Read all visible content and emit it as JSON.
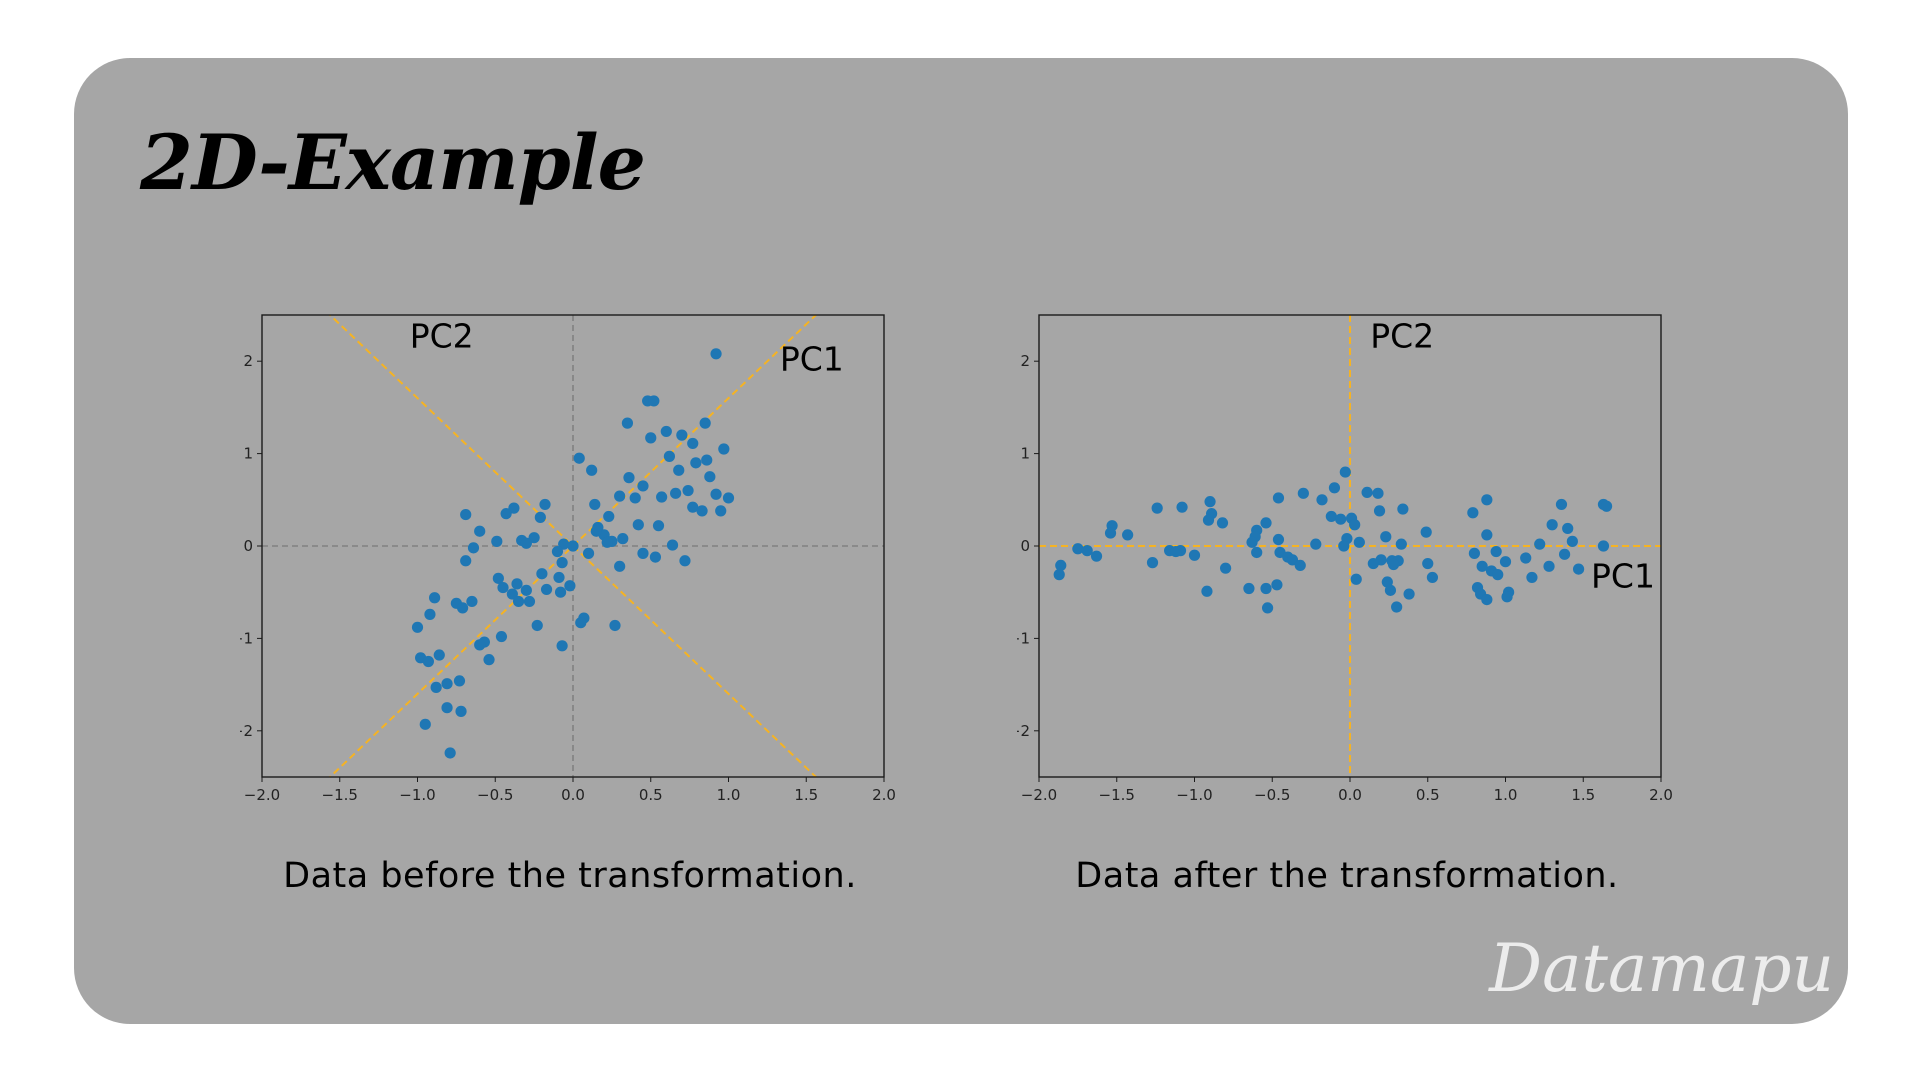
{
  "title": "2D-Example",
  "brand": "Datamapu",
  "colors": {
    "card": "#a6a6a6",
    "points": "#1f77b4",
    "pc_line": "#f5b323",
    "axis_line": "#808080"
  },
  "captions": {
    "before": "Data before the transformation.",
    "after": "Data after the transformation."
  },
  "chart_data": [
    {
      "type": "scatter",
      "xlim": [
        -2.0,
        2.0
      ],
      "ylim": [
        -2.5,
        2.5
      ],
      "xticks": [
        "−2.0",
        "−1.5",
        "−1.0",
        "−0.5",
        "0.0",
        "0.5",
        "1.0",
        "1.5",
        "2.0"
      ],
      "yticks": [
        "−2",
        "−1",
        "0",
        "1",
        "2"
      ],
      "grid": false,
      "annotations": [
        {
          "text": "PC2",
          "x": -1.05,
          "y": 2.15
        },
        {
          "text": "PC1",
          "x": 1.33,
          "y": 1.9
        }
      ],
      "reference_lines": [
        {
          "name": "PC1",
          "style": "dashed",
          "slope": 1.6,
          "intercept": 0
        },
        {
          "name": "PC2",
          "style": "dashed",
          "slope": -1.6,
          "intercept": 0
        },
        {
          "name": "x=0",
          "style": "dashed",
          "x": 0
        },
        {
          "name": "y=0",
          "style": "dashed",
          "y": 0
        }
      ],
      "points": [
        [
          0.92,
          2.08
        ],
        [
          0.48,
          1.57
        ],
        [
          0.52,
          1.57
        ],
        [
          0.35,
          1.33
        ],
        [
          0.85,
          1.33
        ],
        [
          0.5,
          1.17
        ],
        [
          0.6,
          1.24
        ],
        [
          0.77,
          1.11
        ],
        [
          0.7,
          1.2
        ],
        [
          0.97,
          1.05
        ],
        [
          0.04,
          0.95
        ],
        [
          0.12,
          0.82
        ],
        [
          0.62,
          0.97
        ],
        [
          0.86,
          0.93
        ],
        [
          0.79,
          0.9
        ],
        [
          0.36,
          0.74
        ],
        [
          0.68,
          0.82
        ],
        [
          0.88,
          0.75
        ],
        [
          0.45,
          0.65
        ],
        [
          0.74,
          0.6
        ],
        [
          0.66,
          0.57
        ],
        [
          0.92,
          0.56
        ],
        [
          1.0,
          0.52
        ],
        [
          0.57,
          0.53
        ],
        [
          0.4,
          0.52
        ],
        [
          0.3,
          0.54
        ],
        [
          0.77,
          0.42
        ],
        [
          0.83,
          0.38
        ],
        [
          0.95,
          0.38
        ],
        [
          0.14,
          0.45
        ],
        [
          -0.18,
          0.45
        ],
        [
          -0.38,
          0.41
        ],
        [
          -0.43,
          0.35
        ],
        [
          -0.69,
          0.34
        ],
        [
          -0.21,
          0.31
        ],
        [
          0.23,
          0.32
        ],
        [
          0.16,
          0.2
        ],
        [
          0.42,
          0.23
        ],
        [
          -0.6,
          0.16
        ],
        [
          0.2,
          0.12
        ],
        [
          0.15,
          0.16
        ],
        [
          -0.25,
          0.09
        ],
        [
          -0.33,
          0.06
        ],
        [
          -0.49,
          0.05
        ],
        [
          -0.3,
          0.03
        ],
        [
          0.25,
          0.05
        ],
        [
          0.32,
          0.08
        ],
        [
          0.22,
          0.04
        ],
        [
          -0.06,
          0.02
        ],
        [
          0.0,
          0.0
        ],
        [
          -0.64,
          -0.02
        ],
        [
          0.64,
          0.01
        ],
        [
          0.55,
          0.22
        ],
        [
          -0.1,
          -0.06
        ],
        [
          0.1,
          -0.08
        ],
        [
          -0.69,
          -0.16
        ],
        [
          -0.07,
          -0.18
        ],
        [
          0.45,
          -0.08
        ],
        [
          0.53,
          -0.12
        ],
        [
          0.72,
          -0.16
        ],
        [
          0.3,
          -0.22
        ],
        [
          -0.2,
          -0.3
        ],
        [
          -0.09,
          -0.34
        ],
        [
          -0.48,
          -0.35
        ],
        [
          -0.36,
          -0.41
        ],
        [
          -0.45,
          -0.45
        ],
        [
          -0.02,
          -0.43
        ],
        [
          -0.3,
          -0.48
        ],
        [
          -0.39,
          -0.52
        ],
        [
          -0.17,
          -0.47
        ],
        [
          -0.08,
          -0.5
        ],
        [
          -0.28,
          -0.6
        ],
        [
          -0.75,
          -0.62
        ],
        [
          -0.65,
          -0.6
        ],
        [
          -0.71,
          -0.67
        ],
        [
          -0.89,
          -0.56
        ],
        [
          -0.35,
          -0.6
        ],
        [
          0.07,
          -0.78
        ],
        [
          0.05,
          -0.83
        ],
        [
          0.27,
          -0.86
        ],
        [
          -0.23,
          -0.86
        ],
        [
          -0.92,
          -0.74
        ],
        [
          -1.0,
          -0.88
        ],
        [
          -0.46,
          -0.98
        ],
        [
          -0.57,
          -1.04
        ],
        [
          -0.6,
          -1.07
        ],
        [
          -0.07,
          -1.08
        ],
        [
          -0.98,
          -1.21
        ],
        [
          -0.93,
          -1.25
        ],
        [
          -0.54,
          -1.23
        ],
        [
          -0.86,
          -1.18
        ],
        [
          -0.73,
          -1.46
        ],
        [
          -0.81,
          -1.49
        ],
        [
          -0.88,
          -1.53
        ],
        [
          -0.81,
          -1.75
        ],
        [
          -0.72,
          -1.79
        ],
        [
          -0.95,
          -1.93
        ],
        [
          -0.79,
          -2.24
        ]
      ]
    },
    {
      "type": "scatter",
      "xlim": [
        -2.0,
        2.0
      ],
      "ylim": [
        -2.5,
        2.5
      ],
      "xticks": [
        "−2.0",
        "−1.5",
        "−1.0",
        "−0.5",
        "0.0",
        "0.5",
        "1.0",
        "1.5",
        "2.0"
      ],
      "yticks": [
        "−2",
        "−1",
        "0",
        "1",
        "2"
      ],
      "grid": false,
      "annotations": [
        {
          "text": "PC2",
          "x": 0.13,
          "y": 2.15
        },
        {
          "text": "PC1",
          "x": 1.55,
          "y": -0.45
        }
      ],
      "reference_lines": [
        {
          "name": "PC1",
          "style": "dashed",
          "y": 0
        },
        {
          "name": "PC2",
          "style": "dashed",
          "x": 0
        }
      ],
      "points": [
        [
          -0.03,
          0.8
        ],
        [
          -0.1,
          0.63
        ],
        [
          0.11,
          0.58
        ],
        [
          0.18,
          0.57
        ],
        [
          -0.3,
          0.57
        ],
        [
          -0.46,
          0.52
        ],
        [
          -0.18,
          0.5
        ],
        [
          0.88,
          0.5
        ],
        [
          -0.9,
          0.48
        ],
        [
          1.36,
          0.45
        ],
        [
          1.63,
          0.45
        ],
        [
          1.65,
          0.43
        ],
        [
          -1.08,
          0.42
        ],
        [
          -1.24,
          0.41
        ],
        [
          0.34,
          0.4
        ],
        [
          0.19,
          0.38
        ],
        [
          0.79,
          0.36
        ],
        [
          -0.89,
          0.35
        ],
        [
          -0.12,
          0.32
        ],
        [
          -0.91,
          0.28
        ],
        [
          0.01,
          0.3
        ],
        [
          -0.06,
          0.29
        ],
        [
          -0.82,
          0.25
        ],
        [
          -0.54,
          0.25
        ],
        [
          1.3,
          0.23
        ],
        [
          0.03,
          0.23
        ],
        [
          -1.53,
          0.22
        ],
        [
          1.4,
          0.19
        ],
        [
          -0.6,
          0.17
        ],
        [
          -1.54,
          0.14
        ],
        [
          0.49,
          0.15
        ],
        [
          -0.61,
          0.1
        ],
        [
          -1.43,
          0.12
        ],
        [
          0.88,
          0.12
        ],
        [
          0.23,
          0.1
        ],
        [
          -0.02,
          0.08
        ],
        [
          -0.46,
          0.07
        ],
        [
          1.43,
          0.05
        ],
        [
          -0.63,
          0.04
        ],
        [
          0.06,
          0.04
        ],
        [
          1.22,
          0.02
        ],
        [
          -0.22,
          0.02
        ],
        [
          0.33,
          0.02
        ],
        [
          1.63,
          0.0
        ],
        [
          -0.04,
          0.0
        ],
        [
          -1.75,
          -0.03
        ],
        [
          -1.69,
          -0.05
        ],
        [
          -1.16,
          -0.05
        ],
        [
          -1.09,
          -0.05
        ],
        [
          -1.12,
          -0.06
        ],
        [
          -0.6,
          -0.07
        ],
        [
          0.94,
          -0.06
        ],
        [
          -0.45,
          -0.07
        ],
        [
          -1.0,
          -0.1
        ],
        [
          -1.63,
          -0.11
        ],
        [
          -0.4,
          -0.12
        ],
        [
          1.13,
          -0.13
        ],
        [
          1.38,
          -0.09
        ],
        [
          0.8,
          -0.08
        ],
        [
          -0.37,
          -0.15
        ],
        [
          0.2,
          -0.15
        ],
        [
          0.27,
          -0.16
        ],
        [
          0.31,
          -0.16
        ],
        [
          0.5,
          -0.19
        ],
        [
          0.15,
          -0.19
        ],
        [
          -1.27,
          -0.18
        ],
        [
          0.28,
          -0.2
        ],
        [
          -1.86,
          -0.21
        ],
        [
          1.0,
          -0.17
        ],
        [
          -0.32,
          -0.21
        ],
        [
          1.28,
          -0.22
        ],
        [
          0.85,
          -0.22
        ],
        [
          0.91,
          -0.27
        ],
        [
          -0.8,
          -0.24
        ],
        [
          1.47,
          -0.25
        ],
        [
          0.95,
          -0.31
        ],
        [
          -1.87,
          -0.31
        ],
        [
          1.17,
          -0.34
        ],
        [
          0.53,
          -0.34
        ],
        [
          0.04,
          -0.36
        ],
        [
          0.24,
          -0.39
        ],
        [
          -0.47,
          -0.42
        ],
        [
          -0.65,
          -0.46
        ],
        [
          -0.54,
          -0.46
        ],
        [
          -0.92,
          -0.49
        ],
        [
          0.82,
          -0.45
        ],
        [
          0.84,
          -0.52
        ],
        [
          1.02,
          -0.5
        ],
        [
          1.01,
          -0.55
        ],
        [
          0.88,
          -0.58
        ],
        [
          0.26,
          -0.48
        ],
        [
          0.38,
          -0.52
        ],
        [
          0.3,
          -0.66
        ],
        [
          -0.53,
          -0.67
        ]
      ]
    }
  ]
}
